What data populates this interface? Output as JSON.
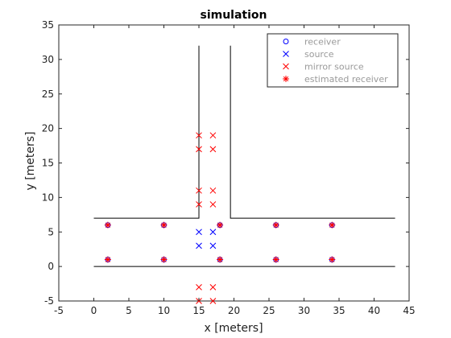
{
  "chart_data": {
    "type": "scatter",
    "title": "simulation",
    "xlabel": "x [meters]",
    "ylabel": "y [meters]",
    "xlim": [
      -5,
      45
    ],
    "ylim": [
      -5,
      35
    ],
    "xticks": [
      -5,
      0,
      5,
      10,
      15,
      20,
      25,
      30,
      35,
      40,
      45
    ],
    "yticks": [
      -5,
      0,
      5,
      10,
      15,
      20,
      25,
      30,
      35
    ],
    "legend_position": "top-right",
    "walls": [
      [
        [
          0,
          7
        ],
        [
          15,
          7
        ],
        [
          15,
          32
        ]
      ],
      [
        [
          19.5,
          32
        ],
        [
          19.5,
          7
        ],
        [
          43,
          7
        ]
      ],
      [
        [
          0,
          0
        ],
        [
          43,
          0
        ]
      ]
    ],
    "series": [
      {
        "name": "receiver",
        "marker": "circle",
        "color": "#0000ff",
        "points": [
          [
            2,
            6
          ],
          [
            10,
            6
          ],
          [
            18,
            6
          ],
          [
            26,
            6
          ],
          [
            34,
            6
          ],
          [
            2,
            1
          ],
          [
            10,
            1
          ],
          [
            18,
            1
          ],
          [
            26,
            1
          ],
          [
            34,
            1
          ]
        ]
      },
      {
        "name": "source",
        "marker": "x",
        "color": "#0000ff",
        "points": [
          [
            15,
            5
          ],
          [
            17,
            5
          ],
          [
            15,
            3
          ],
          [
            17,
            3
          ]
        ]
      },
      {
        "name": "mirror source",
        "marker": "x",
        "color": "#ff0000",
        "points": [
          [
            15,
            19
          ],
          [
            17,
            19
          ],
          [
            15,
            17
          ],
          [
            17,
            17
          ],
          [
            15,
            11
          ],
          [
            17,
            11
          ],
          [
            15,
            9
          ],
          [
            17,
            9
          ],
          [
            15,
            -3
          ],
          [
            17,
            -3
          ],
          [
            15,
            -5
          ],
          [
            17,
            -5
          ]
        ]
      },
      {
        "name": "estimated receiver",
        "marker": "star",
        "color": "#ff0000",
        "points": [
          [
            2,
            6
          ],
          [
            10,
            6
          ],
          [
            18,
            6
          ],
          [
            26,
            6
          ],
          [
            34,
            6
          ],
          [
            2,
            1
          ],
          [
            10,
            1
          ],
          [
            18,
            1
          ],
          [
            26,
            1
          ],
          [
            34,
            1
          ]
        ]
      }
    ]
  }
}
